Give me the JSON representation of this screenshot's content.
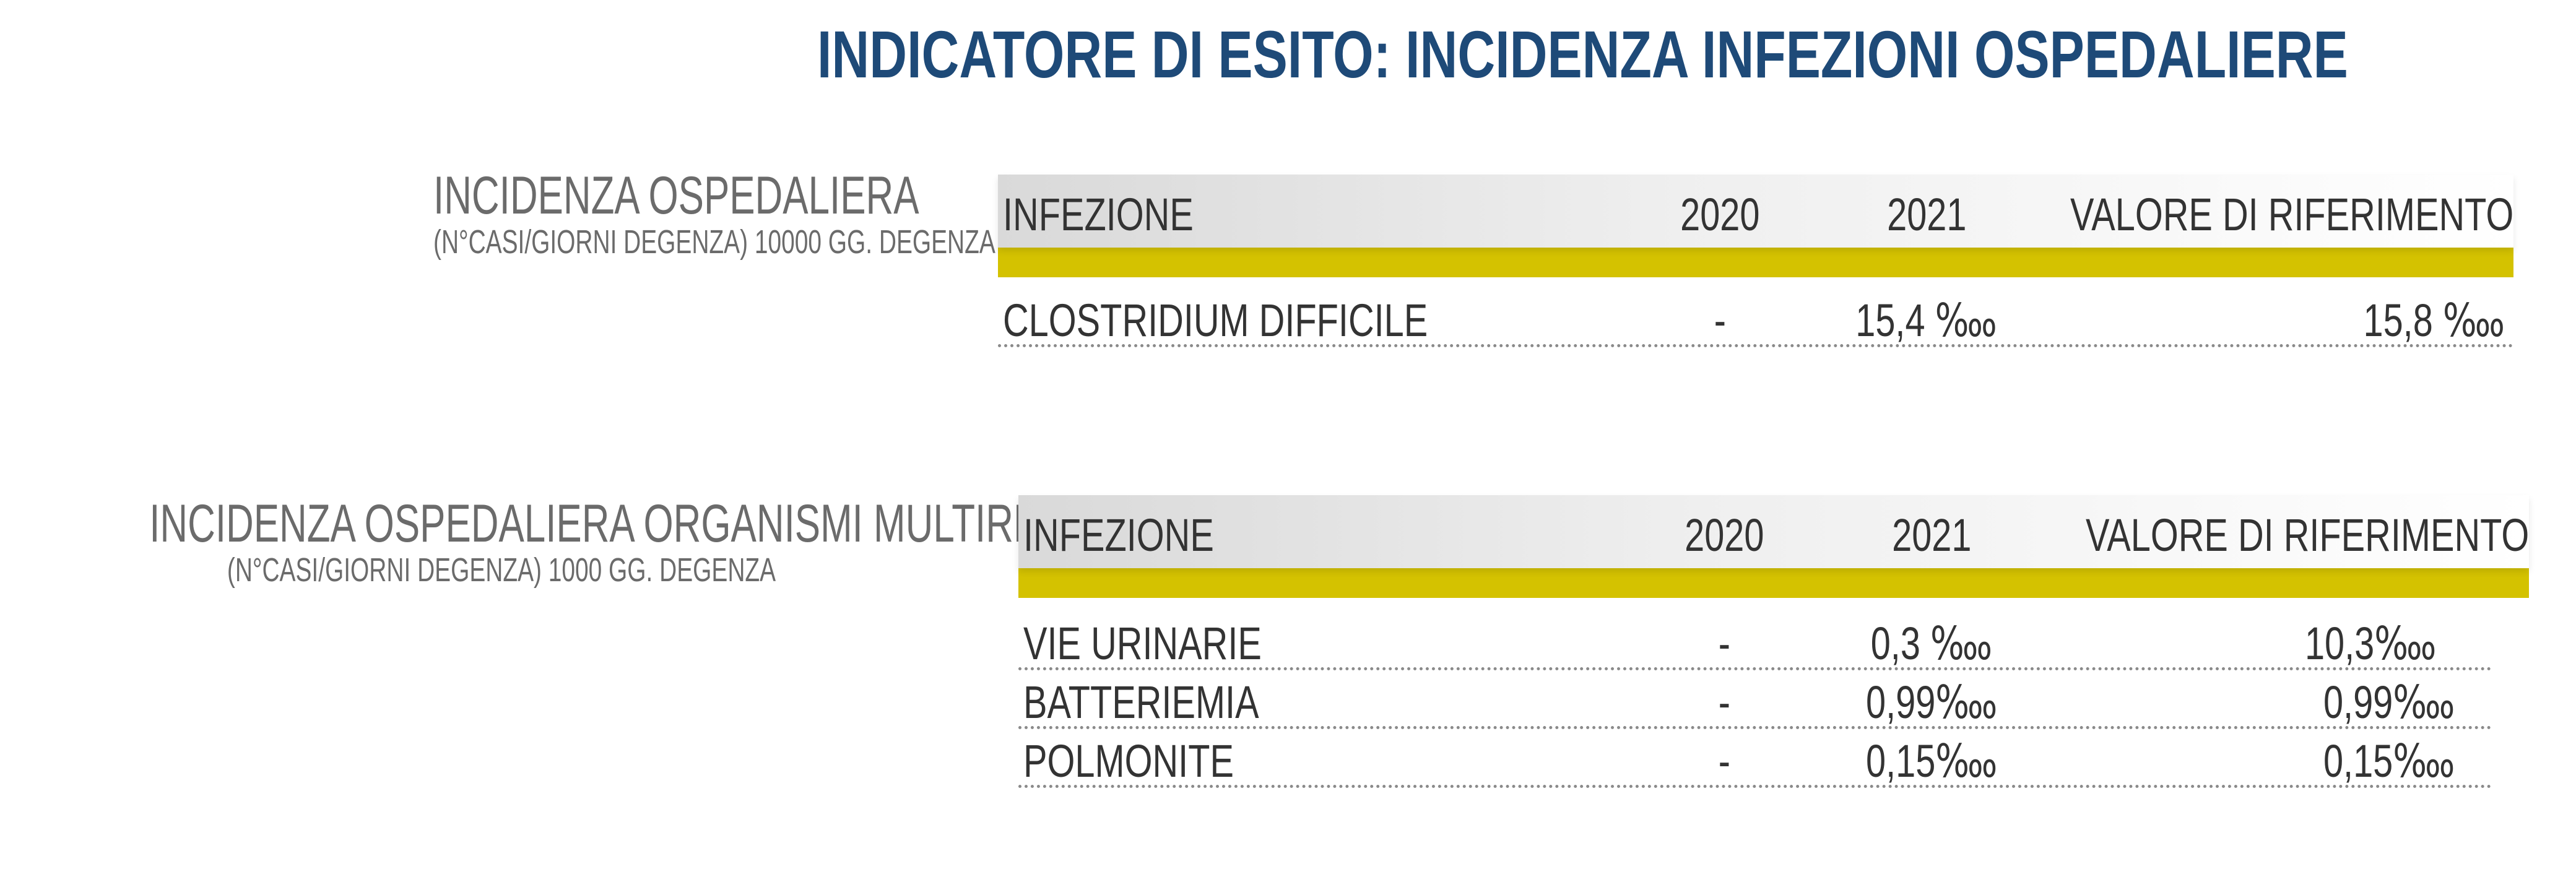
{
  "title": "INDICATORE DI ESITO: INCIDENZA INFEZIONI OSPEDALIERE",
  "sections": [
    {
      "label": "INCIDENZA OSPEDALIERA",
      "sublabel": "(N°CASI/GIORNI DEGENZA) 10000 GG. DEGENZA",
      "headers": {
        "infezione": "INFEZIONE",
        "y2020": "2020",
        "y2021": "2021",
        "riferimento": "VALORE DI RIFERIMENTO"
      },
      "rows": [
        {
          "infezione": "CLOSTRIDIUM DIFFICILE",
          "y2020": "-",
          "y2021": "15,4 ‱",
          "riferimento": "15,8 ‱"
        }
      ]
    },
    {
      "label": "INCIDENZA OSPEDALIERA ORGANISMI MULTIRESISTENTI",
      "sublabel": "(N°CASI/GIORNI DEGENZA) 1000 GG. DEGENZA",
      "headers": {
        "infezione": "INFEZIONE",
        "y2020": "2020",
        "y2021": "2021",
        "riferimento": "VALORE DI RIFERIMENTO"
      },
      "rows": [
        {
          "infezione": "VIE URINARIE",
          "y2020": "-",
          "y2021": "0,3 ‱",
          "riferimento": "10,3‱"
        },
        {
          "infezione": "BATTERIEMIA",
          "y2020": "-",
          "y2021": "0,99‱",
          "riferimento": "0,99‱"
        },
        {
          "infezione": "POLMONITE",
          "y2020": "-",
          "y2021": "0,15‱",
          "riferimento": "0,15‱"
        }
      ]
    }
  ]
}
